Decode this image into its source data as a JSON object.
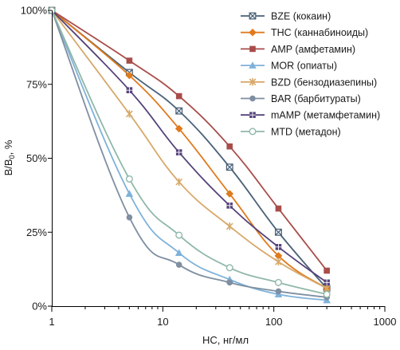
{
  "chart_data": {
    "type": "line",
    "xlabel": "HC, нг/мл",
    "ylabel_main": "B/B",
    "ylabel_sub": "0",
    "ylabel_suffix": ", %",
    "xscale": "log",
    "xlim": [
      1,
      1000
    ],
    "ylim": [
      0,
      100
    ],
    "x_ticks": [
      1,
      10,
      100,
      1000
    ],
    "x_tick_labels": [
      "1",
      "10",
      "100",
      "1000"
    ],
    "y_ticks": [
      0,
      25,
      50,
      75,
      100
    ],
    "y_tick_labels": [
      "0%",
      "25%",
      "50%",
      "75%",
      "100%"
    ],
    "grid": false,
    "legend_position": "top-right",
    "series": [
      {
        "name": "BZE (кокаин)",
        "color": "#4a6178",
        "marker": "x-square",
        "x": [
          1,
          5,
          14,
          40,
          110,
          300
        ],
        "y": [
          100,
          79,
          66,
          47,
          25,
          6
        ]
      },
      {
        "name": "THC (каннабиноиды)",
        "color": "#e07a1c",
        "marker": "diamond",
        "x": [
          1,
          5,
          14,
          40,
          110,
          300
        ],
        "y": [
          100,
          78,
          60,
          38,
          17,
          6
        ]
      },
      {
        "name": "AMP (амфетамин)",
        "color": "#a84d4a",
        "marker": "square",
        "x": [
          1,
          5,
          14,
          40,
          110,
          300
        ],
        "y": [
          100,
          83,
          71,
          54,
          33,
          12
        ]
      },
      {
        "name": "MOR (опиаты)",
        "color": "#7fb2da",
        "marker": "triangle",
        "x": [
          1,
          5,
          14,
          40,
          110,
          300
        ],
        "y": [
          100,
          38,
          18,
          9,
          4,
          2
        ]
      },
      {
        "name": "BZD (бензодиазепины)",
        "color": "#d7a96a",
        "marker": "asterisk",
        "x": [
          1,
          5,
          14,
          40,
          110,
          300
        ],
        "y": [
          100,
          65,
          42,
          27,
          15,
          6
        ]
      },
      {
        "name": "BAR (барбитураты)",
        "color": "#7f8fa1",
        "marker": "circle",
        "x": [
          1,
          5,
          14,
          40,
          110,
          300
        ],
        "y": [
          100,
          30,
          14,
          8,
          5,
          3
        ]
      },
      {
        "name": "mAMP (метамфетамин)",
        "color": "#54427a",
        "marker": "grid-square",
        "x": [
          1,
          5,
          14,
          40,
          110,
          300
        ],
        "y": [
          100,
          73,
          52,
          34,
          20,
          8
        ]
      },
      {
        "name": "MTD (метадон)",
        "color": "#8fb8a7",
        "marker": "open-circle",
        "x": [
          1,
          5,
          14,
          40,
          110,
          300
        ],
        "y": [
          100,
          43,
          24,
          13,
          8,
          4
        ]
      }
    ]
  }
}
